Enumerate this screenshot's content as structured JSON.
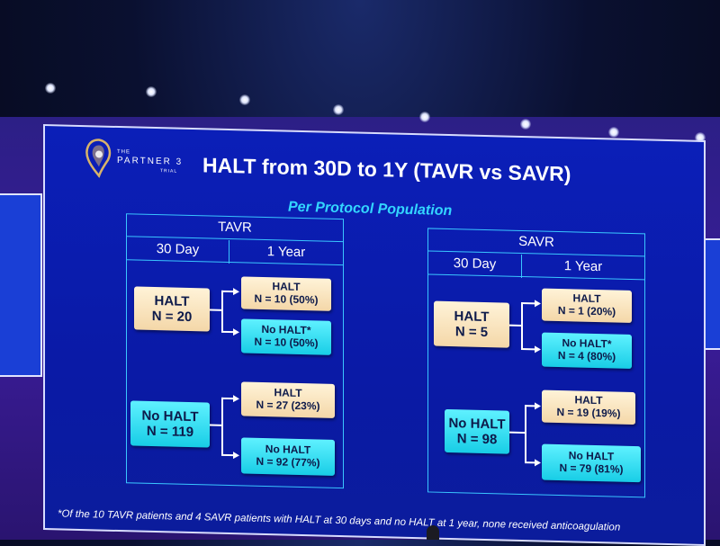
{
  "logo": {
    "the": "THE",
    "name": "PARTNER 3",
    "trial": "TRIAL"
  },
  "title": "HALT from 30D to 1Y (TAVR vs SAVR)",
  "subtitle": "Per Protocol Population",
  "tavr": {
    "header": "TAVR",
    "col_30": "30 Day",
    "col_1y": "1 Year",
    "halt": {
      "l1": "HALT",
      "l2": "N = 20"
    },
    "halt_to_halt": {
      "l1": "HALT",
      "l2": "N = 10 (50%)"
    },
    "halt_to_nohalt": {
      "l1": "No HALT*",
      "l2": "N = 10 (50%)"
    },
    "nohalt": {
      "l1": "No HALT",
      "l2": "N = 119"
    },
    "nohalt_to_halt": {
      "l1": "HALT",
      "l2": "N = 27 (23%)"
    },
    "nohalt_to_nohalt": {
      "l1": "No HALT",
      "l2": "N = 92 (77%)"
    }
  },
  "savr": {
    "header": "SAVR",
    "col_30": "30 Day",
    "col_1y": "1 Year",
    "halt": {
      "l1": "HALT",
      "l2": "N = 5"
    },
    "halt_to_halt": {
      "l1": "HALT",
      "l2": "N = 1 (20%)"
    },
    "halt_to_nohalt": {
      "l1": "No HALT*",
      "l2": "N = 4 (80%)"
    },
    "nohalt": {
      "l1": "No HALT",
      "l2": "N = 98"
    },
    "nohalt_to_halt": {
      "l1": "HALT",
      "l2": "N = 19 (19%)"
    },
    "nohalt_to_nohalt": {
      "l1": "No HALT",
      "l2": "N = 79 (81%)"
    }
  },
  "footnote": "*Of the 10 TAVR patients and 4 SAVR patients with HALT at 30 days and no HALT at 1 year, none received anticoagulation",
  "colors": {
    "slide_bg": "#0a1aa6",
    "panel_border": "#3ac6ff",
    "subtitle": "#33d6ff",
    "box_tan": "#f4d7a8",
    "box_cyan": "#18cde6",
    "box_text": "#0d1a4a"
  }
}
